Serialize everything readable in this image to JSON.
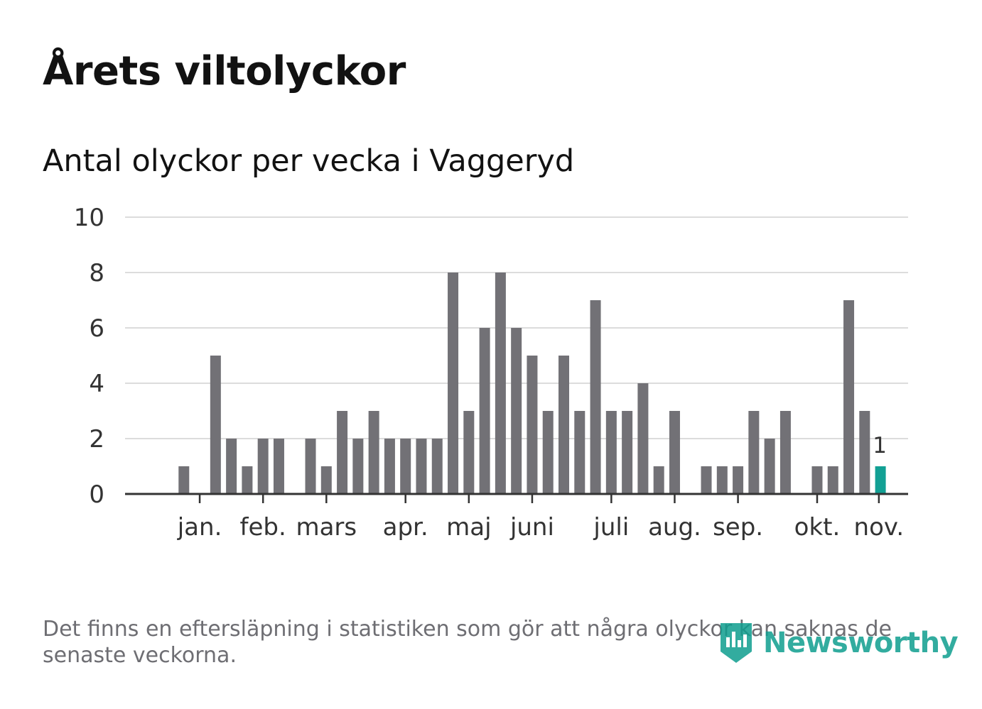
{
  "header": {
    "title": "Årets viltolyckor",
    "subtitle": "Antal olyckor per vecka i Vaggeryd"
  },
  "chart_data": {
    "type": "bar",
    "title": "Årets viltolyckor",
    "subtitle": "Antal olyckor per vecka i Vaggeryd",
    "xlabel": "",
    "ylabel": "",
    "ylim": [
      0,
      10
    ],
    "yticks": [
      "0",
      "2",
      "4",
      "6",
      "8",
      "10"
    ],
    "grid": true,
    "x": [
      1,
      2,
      3,
      4,
      5,
      6,
      7,
      8,
      9,
      10,
      11,
      12,
      13,
      14,
      15,
      16,
      17,
      18,
      19,
      20,
      21,
      22,
      23,
      24,
      25,
      26,
      27,
      28,
      29,
      30,
      31,
      32,
      33,
      34,
      35,
      36,
      37,
      38,
      39,
      40,
      41,
      42,
      43,
      44,
      45,
      46
    ],
    "values": [
      0,
      1,
      0,
      5,
      2,
      1,
      2,
      2,
      0,
      2,
      1,
      3,
      2,
      3,
      2,
      2,
      2,
      2,
      8,
      3,
      6,
      8,
      6,
      5,
      3,
      5,
      3,
      7,
      3,
      3,
      4,
      1,
      3,
      0,
      1,
      1,
      1,
      3,
      2,
      3,
      0,
      1,
      1,
      7,
      3,
      1
    ],
    "highlight_index": 45,
    "highlight_label": "1",
    "month_labels": [
      {
        "label": "jan.",
        "week": 3
      },
      {
        "label": "feb.",
        "week": 7
      },
      {
        "label": "mars",
        "week": 11
      },
      {
        "label": "apr.",
        "week": 16
      },
      {
        "label": "maj",
        "week": 20
      },
      {
        "label": "juni",
        "week": 24
      },
      {
        "label": "juli",
        "week": 29
      },
      {
        "label": "aug.",
        "week": 33
      },
      {
        "label": "sep.",
        "week": 37
      },
      {
        "label": "okt.",
        "week": 42
      },
      {
        "label": "nov.",
        "week": 45.9
      }
    ],
    "colors": {
      "bar": "#727176",
      "highlight": "#12a094",
      "grid": "#dcdcdc",
      "axis": "#333333",
      "text": "#333333"
    }
  },
  "footer": {
    "note": "Det finns en eftersläpning i statistiken som gör att några olyckor kan saknas de senaste veckorna.",
    "brand": "Newsworthy"
  }
}
